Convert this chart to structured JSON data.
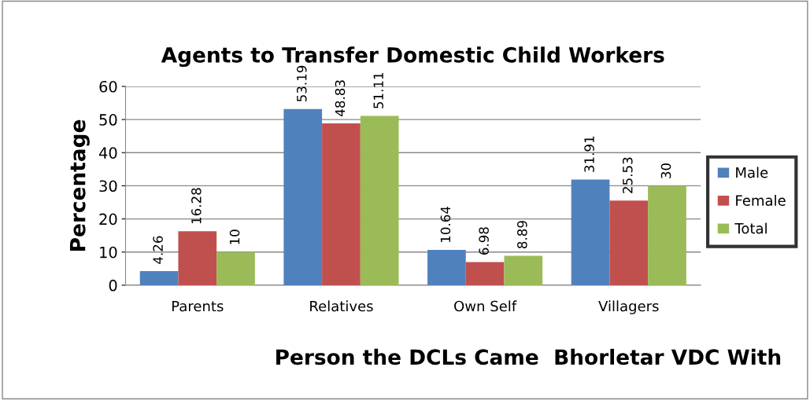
{
  "chart_data": {
    "type": "bar",
    "title": "Agents to Transfer Domestic Child Workers",
    "xlabel": "Person the DCLs Came  Bhorletar VDC With",
    "ylabel": "Percentage",
    "categories": [
      "Parents",
      "Relatives",
      "Own Self",
      "Villagers"
    ],
    "series": [
      {
        "name": "Male",
        "color": "#4f81bd",
        "values": [
          4.26,
          53.19,
          10.64,
          31.91
        ]
      },
      {
        "name": "Female",
        "color": "#c0504d",
        "values": [
          16.28,
          48.83,
          6.98,
          25.53
        ]
      },
      {
        "name": "Total",
        "color": "#9bbb59",
        "values": [
          10,
          51.11,
          8.89,
          30
        ]
      }
    ],
    "ylim": [
      0,
      60
    ],
    "yticks": [
      0,
      10,
      20,
      30,
      40,
      50,
      60
    ],
    "grid": "y",
    "legend": "right",
    "data_labels": true
  }
}
